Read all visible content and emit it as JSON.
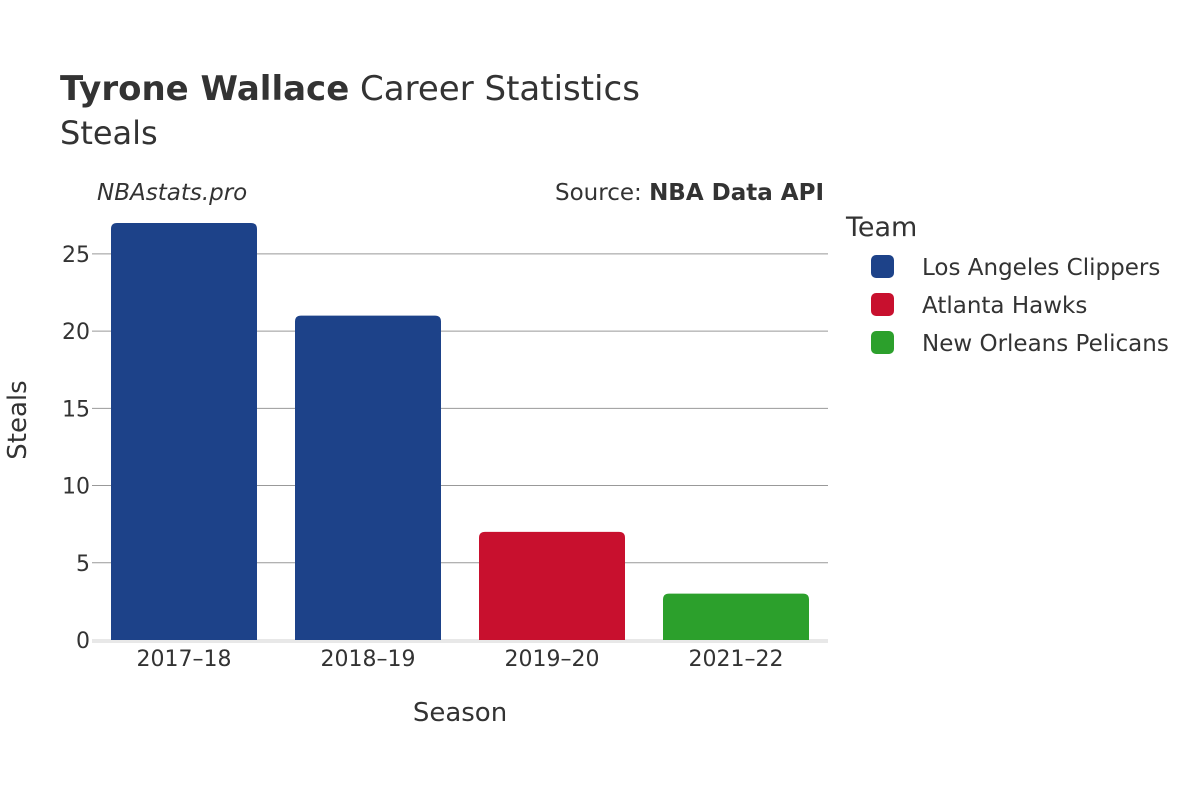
{
  "title": {
    "player": "Tyrone Wallace",
    "suffix": " Career Statistics",
    "subtitle": "Steals"
  },
  "watermark": "NBAstats.pro",
  "source": {
    "prefix": "Source: ",
    "name": "NBA Data API"
  },
  "legend": {
    "title": "Team",
    "entries": [
      {
        "label": "Los Angeles Clippers",
        "color": "#1d4289"
      },
      {
        "label": "Atlanta Hawks",
        "color": "#c8102e"
      },
      {
        "label": "New Orleans Pelicans",
        "color": "#2ca02c"
      }
    ]
  },
  "chart_data": {
    "type": "bar",
    "title": "Tyrone Wallace Career Statistics",
    "subtitle": "Steals",
    "xlabel": "Season",
    "ylabel": "Steals",
    "categories": [
      "2017–18",
      "2018–19",
      "2019–20",
      "2021–22"
    ],
    "values": [
      27,
      21,
      7,
      3
    ],
    "teams": [
      "Los Angeles Clippers",
      "Los Angeles Clippers",
      "Atlanta Hawks",
      "New Orleans Pelicans"
    ],
    "bar_colors": [
      "#1d4289",
      "#1d4289",
      "#c8102e",
      "#2ca02c"
    ],
    "ylim": [
      0,
      27
    ],
    "yticks": [
      0,
      5,
      10,
      15,
      20,
      25
    ],
    "grid": true,
    "legend_position": "right"
  }
}
